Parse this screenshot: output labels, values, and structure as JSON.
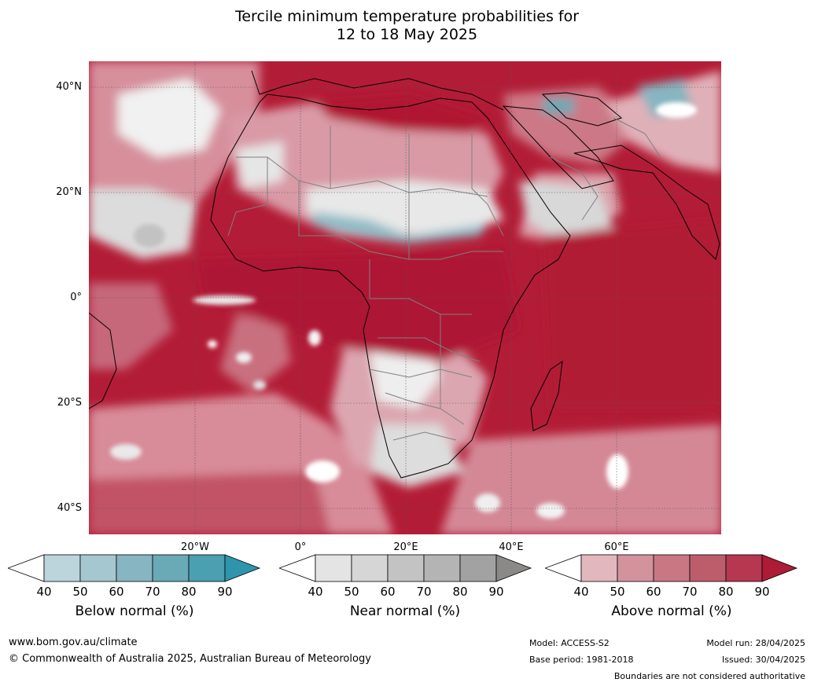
{
  "title": {
    "line1": "Tercile minimum temperature probabilities for",
    "line2": "12 to 18 May 2025"
  },
  "map": {
    "lat_labels": [
      "40°N",
      "20°N",
      "0°",
      "20°S",
      "40°S"
    ],
    "lon_labels": [
      "20°W",
      "0°",
      "20°E",
      "40°E",
      "60°E"
    ],
    "background_color": "#b31c36",
    "coastline_color": "#000000",
    "border_color": "#808080"
  },
  "legends": [
    {
      "title": "Below normal (%)",
      "ticks": [
        "40",
        "50",
        "60",
        "70",
        "80",
        "90"
      ],
      "colors": [
        "#ffffff",
        "#bcd4db",
        "#a5c7cf",
        "#87b5c1",
        "#6aa9b6",
        "#4a9fb0",
        "#2e95ad"
      ]
    },
    {
      "title": "Near normal (%)",
      "ticks": [
        "40",
        "50",
        "60",
        "70",
        "80",
        "90"
      ],
      "colors": [
        "#ffffff",
        "#e4e4e4",
        "#d6d6d6",
        "#c3c3c3",
        "#b4b4b4",
        "#a2a2a2",
        "#8b8888"
      ]
    },
    {
      "title": "Above normal (%)",
      "ticks": [
        "40",
        "50",
        "60",
        "70",
        "80",
        "90"
      ],
      "colors": [
        "#ffffff",
        "#e3b7be",
        "#d3939d",
        "#c97883",
        "#bd5d6b",
        "#b53750",
        "#ae1b37"
      ]
    }
  ],
  "footer": {
    "website": "www.bom.gov.au/climate",
    "copyright": "© Commonwealth of Australia 2025, Australian Bureau of Meteorology",
    "model": "Model: ACCESS-S2",
    "base_period": "Base period: 1981-2018",
    "model_run": "Model run: 28/04/2025",
    "issued": "Issued: 30/04/2025",
    "disclaimer": "Boundaries are not considered authoritative"
  }
}
